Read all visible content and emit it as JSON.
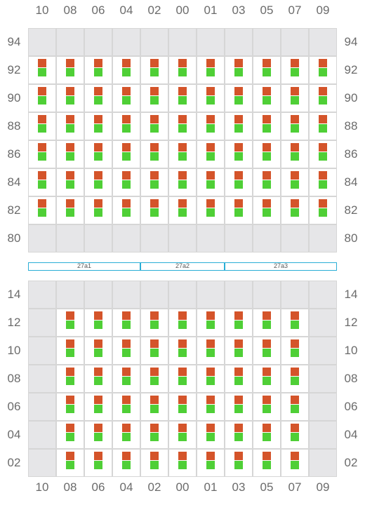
{
  "columns": [
    "10",
    "08",
    "06",
    "04",
    "02",
    "00",
    "01",
    "03",
    "05",
    "07",
    "09"
  ],
  "top_block": {
    "rows": [
      "94",
      "92",
      "90",
      "88",
      "86",
      "84",
      "82",
      "80"
    ],
    "active_rows": [
      "92",
      "90",
      "88",
      "86",
      "84",
      "82"
    ],
    "active_cols": [
      "10",
      "08",
      "06",
      "04",
      "02",
      "00",
      "01",
      "03",
      "05",
      "07",
      "09"
    ]
  },
  "bottom_block": {
    "rows": [
      "14",
      "12",
      "10",
      "08",
      "06",
      "04",
      "02"
    ],
    "active_rows": [
      "12",
      "10",
      "08",
      "06",
      "04",
      "02"
    ],
    "active_cols": [
      "08",
      "06",
      "04",
      "02",
      "00",
      "01",
      "03",
      "05",
      "07"
    ]
  },
  "dividers": [
    {
      "label": "27a1",
      "from_col": 0,
      "to_col": 4
    },
    {
      "label": "27a2",
      "from_col": 4,
      "to_col": 7
    },
    {
      "label": "27a3",
      "from_col": 7,
      "to_col": 11
    }
  ],
  "colors": {
    "marker_top": "#d4542a",
    "marker_bottom": "#4fcf36",
    "empty_cell": "#e6e6e8",
    "divider_border": "#2aaed6"
  }
}
